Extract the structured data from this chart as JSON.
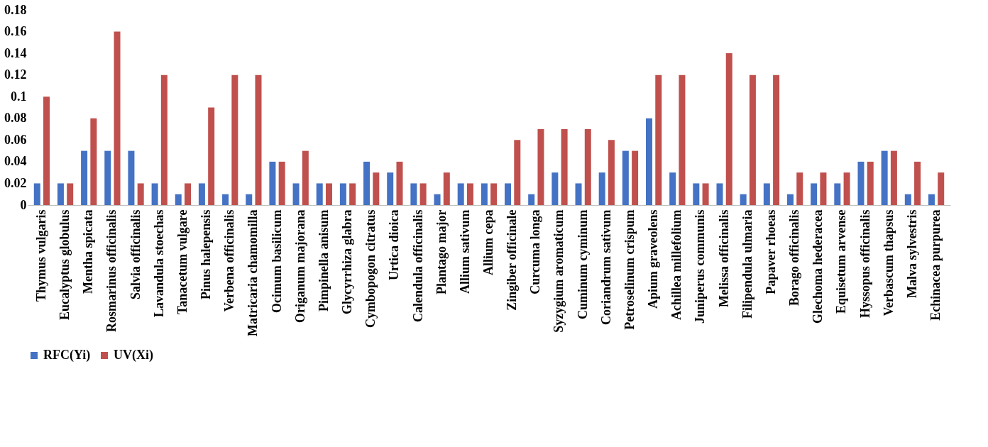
{
  "chart_data": {
    "type": "bar",
    "categories": [
      "Thymus vulgaris",
      "Eucalyptus globulus",
      "Mentha spicata",
      "Rosmarinus officinalis",
      "Salvia officinalis",
      "Lavandula stoechas",
      "Tanacetum vulgare",
      "Pinus halepensis",
      "Verbena officinalis",
      "Matricaria chamomilla",
      "Ocimum basilicum",
      "Origanum majorana",
      "Pimpinella anisum",
      "Glycyrrhiza glabra",
      "Cymbopogon citratus",
      "Urtica dioica",
      "Calendula officinalis",
      "Plantago major",
      "Allium sativum",
      "Allium cepa",
      "Zingiber officinale",
      "Curcuma longa",
      "Syzygium aromaticum",
      "Cuminum cyminum",
      "Coriandrum sativum",
      "Petroselinum crispum",
      "Apium graveolens",
      "Achillea millefolium",
      "Juniperus communis",
      "Melissa officinalis",
      "Filipendula ulmaria",
      "Papaver rhoeas",
      "Borago officinalis",
      "Glechoma hederacea",
      "Equisetum arvense",
      "Hyssopus officinalis",
      "Verbascum thapsus",
      "Malva sylvestris",
      "Echinacea purpurea"
    ],
    "series": [
      {
        "name": "RFC(Yi)",
        "color": "#4472c4",
        "values": [
          0.02,
          0.02,
          0.05,
          0.05,
          0.05,
          0.02,
          0.01,
          0.02,
          0.01,
          0.01,
          0.04,
          0.02,
          0.02,
          0.02,
          0.04,
          0.03,
          0.02,
          0.01,
          0.02,
          0.02,
          0.02,
          0.01,
          0.03,
          0.02,
          0.03,
          0.05,
          0.08,
          0.03,
          0.02,
          0.02,
          0.01,
          0.02,
          0.01,
          0.02,
          0.02,
          0.04,
          0.05,
          0.01,
          0.01
        ]
      },
      {
        "name": "UV(Xi)",
        "color": "#c0504d",
        "values": [
          0.1,
          0.02,
          0.08,
          0.16,
          0.02,
          0.12,
          0.02,
          0.09,
          0.12,
          0.12,
          0.04,
          0.05,
          0.02,
          0.02,
          0.03,
          0.04,
          0.02,
          0.03,
          0.02,
          0.02,
          0.06,
          0.07,
          0.07,
          0.07,
          0.06,
          0.05,
          0.12,
          0.12,
          0.02,
          0.14,
          0.12,
          0.12,
          0.03,
          0.03,
          0.03,
          0.04,
          0.05,
          0.04,
          0.03
        ]
      }
    ],
    "ylim": [
      0,
      0.18
    ],
    "yticks": [
      0,
      0.02,
      0.04,
      0.06,
      0.08,
      0.1,
      0.12,
      0.14,
      0.16,
      0.18
    ],
    "grid": false,
    "legend": "bottom"
  }
}
